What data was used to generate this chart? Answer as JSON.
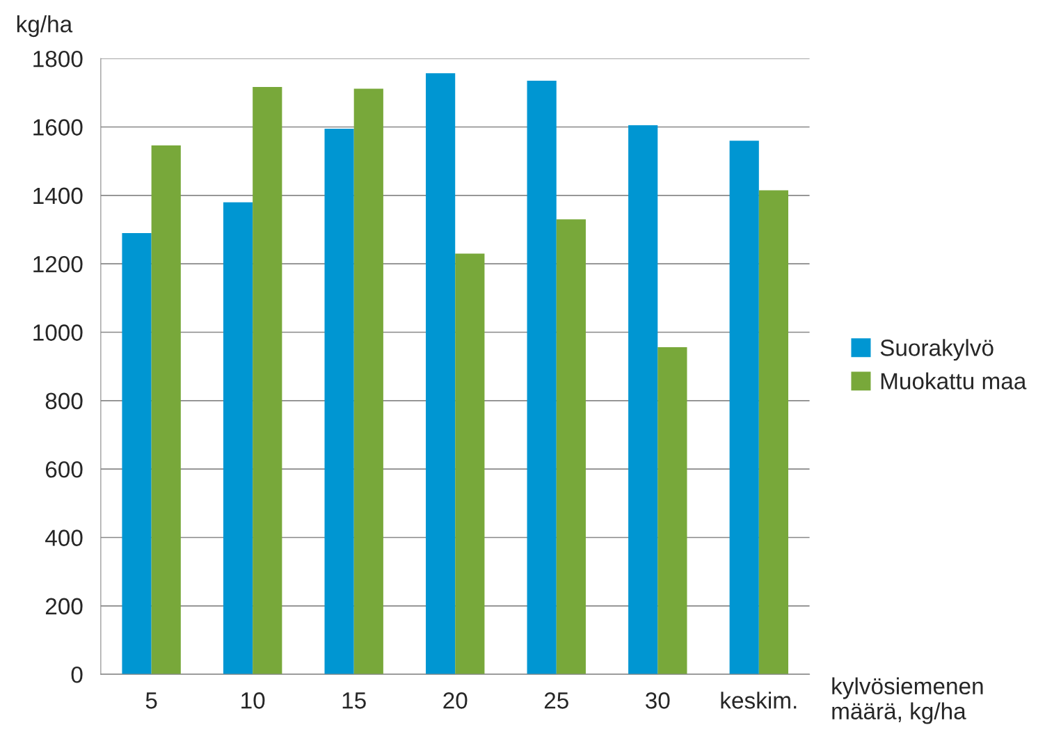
{
  "chart_data": {
    "type": "bar",
    "ylabel": "kg/ha",
    "xlabel": "kylvösiemenen\nmäärä, kg/ha",
    "categories": [
      "5",
      "10",
      "15",
      "20",
      "25",
      "30",
      "keskim."
    ],
    "series": [
      {
        "name": "Suorakylvö",
        "color": "#0096d2",
        "values": [
          1290,
          1380,
          1595,
          1757,
          1735,
          1605,
          1560
        ]
      },
      {
        "name": "Muokattu maa",
        "color": "#78a83a",
        "values": [
          1546,
          1717,
          1712,
          1230,
          1330,
          956,
          1415
        ]
      }
    ],
    "ylim": [
      0,
      1800
    ],
    "yticks": [
      0,
      200,
      400,
      600,
      800,
      1000,
      1200,
      1400,
      1600,
      1800
    ],
    "grid": "y",
    "legend": "right"
  }
}
